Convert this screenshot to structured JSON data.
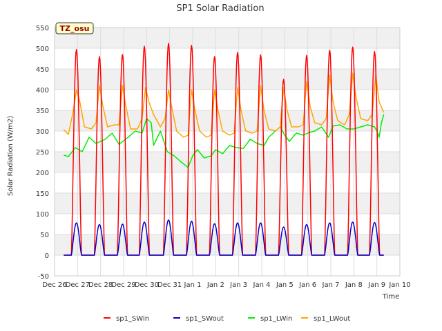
{
  "chart_data": {
    "type": "line",
    "title": "SP1 Solar Radiation",
    "xlabel": "Time",
    "ylabel": "Solar Radiation (W/m2)",
    "site_label": "TZ_osu",
    "ylim": [
      -50,
      550
    ],
    "yticks": [
      -50,
      0,
      50,
      100,
      150,
      200,
      250,
      300,
      350,
      400,
      450,
      500,
      550
    ],
    "xlim": [
      0,
      15
    ],
    "xticks": [
      {
        "x": 0,
        "label": "Dec 26"
      },
      {
        "x": 1,
        "label": "Dec 27"
      },
      {
        "x": 2,
        "label": "Dec 28"
      },
      {
        "x": 3,
        "label": "Dec 29"
      },
      {
        "x": 4,
        "label": "Dec 30"
      },
      {
        "x": 5,
        "label": "Dec 31"
      },
      {
        "x": 6,
        "label": "Jan 1"
      },
      {
        "x": 7,
        "label": "Jan 2"
      },
      {
        "x": 8,
        "label": "Jan 3"
      },
      {
        "x": 9,
        "label": "Jan 4"
      },
      {
        "x": 10,
        "label": "Jan 5"
      },
      {
        "x": 11,
        "label": "Jan 6"
      },
      {
        "x": 12,
        "label": "Jan 7"
      },
      {
        "x": 13,
        "label": "Jan 8"
      },
      {
        "x": 14,
        "label": "Jan 9"
      },
      {
        "x": 15,
        "label": "Jan 10"
      }
    ],
    "grid": true,
    "legend_position": "bottom",
    "series": [
      {
        "name": "sp1_SWin",
        "color": "#ff0000",
        "peaks": [
          [
            0.95,
            497
          ],
          [
            1.95,
            480
          ],
          [
            2.95,
            485
          ],
          [
            3.9,
            505
          ],
          [
            4.95,
            512
          ],
          [
            5.95,
            507
          ],
          [
            6.95,
            480
          ],
          [
            7.95,
            490
          ],
          [
            8.95,
            484
          ],
          [
            9.95,
            425
          ],
          [
            10.95,
            483
          ],
          [
            11.95,
            495
          ],
          [
            12.95,
            503
          ],
          [
            13.9,
            492
          ]
        ]
      },
      {
        "name": "sp1_SWout",
        "color": "#0000cc",
        "peaks": [
          [
            0.95,
            78
          ],
          [
            1.95,
            74
          ],
          [
            2.95,
            75
          ],
          [
            3.9,
            80
          ],
          [
            4.95,
            85
          ],
          [
            5.95,
            82
          ],
          [
            6.95,
            76
          ],
          [
            7.95,
            78
          ],
          [
            8.95,
            78
          ],
          [
            9.95,
            68
          ],
          [
            10.95,
            74
          ],
          [
            11.95,
            78
          ],
          [
            12.95,
            80
          ],
          [
            13.9,
            79
          ]
        ]
      },
      {
        "name": "sp1_LWin",
        "color": "#00ee00",
        "points": [
          [
            0.4,
            242
          ],
          [
            0.6,
            238
          ],
          [
            0.9,
            260
          ],
          [
            1.2,
            250
          ],
          [
            1.5,
            285
          ],
          [
            1.8,
            270
          ],
          [
            2.2,
            280
          ],
          [
            2.5,
            295
          ],
          [
            2.8,
            268
          ],
          [
            3.2,
            285
          ],
          [
            3.5,
            300
          ],
          [
            3.8,
            295
          ],
          [
            4.0,
            330
          ],
          [
            4.2,
            320
          ],
          [
            4.3,
            265
          ],
          [
            4.6,
            300
          ],
          [
            4.9,
            250
          ],
          [
            5.2,
            240
          ],
          [
            5.5,
            225
          ],
          [
            5.8,
            212
          ],
          [
            6.0,
            240
          ],
          [
            6.2,
            255
          ],
          [
            6.5,
            235
          ],
          [
            6.8,
            240
          ],
          [
            7.0,
            255
          ],
          [
            7.3,
            245
          ],
          [
            7.6,
            265
          ],
          [
            7.9,
            260
          ],
          [
            8.2,
            258
          ],
          [
            8.5,
            280
          ],
          [
            8.8,
            270
          ],
          [
            9.1,
            265
          ],
          [
            9.3,
            285
          ],
          [
            9.6,
            300
          ],
          [
            9.8,
            310
          ],
          [
            10.0,
            290
          ],
          [
            10.2,
            275
          ],
          [
            10.5,
            295
          ],
          [
            10.8,
            290
          ],
          [
            11.0,
            295
          ],
          [
            11.3,
            300
          ],
          [
            11.6,
            310
          ],
          [
            11.9,
            285
          ],
          [
            12.1,
            312
          ],
          [
            12.4,
            315
          ],
          [
            12.7,
            305
          ],
          [
            13.0,
            305
          ],
          [
            13.3,
            310
          ],
          [
            13.6,
            315
          ],
          [
            13.9,
            310
          ],
          [
            14.0,
            300
          ],
          [
            14.1,
            285
          ],
          [
            14.2,
            320
          ],
          [
            14.3,
            340
          ]
        ]
      },
      {
        "name": "sp1_LWout",
        "color": "#ffa500",
        "points": [
          [
            0.4,
            303
          ],
          [
            0.6,
            292
          ],
          [
            0.8,
            345
          ],
          [
            0.95,
            400
          ],
          [
            1.1,
            370
          ],
          [
            1.3,
            310
          ],
          [
            1.6,
            305
          ],
          [
            1.8,
            320
          ],
          [
            1.95,
            410
          ],
          [
            2.1,
            360
          ],
          [
            2.3,
            310
          ],
          [
            2.6,
            315
          ],
          [
            2.8,
            315
          ],
          [
            2.95,
            410
          ],
          [
            3.1,
            360
          ],
          [
            3.3,
            305
          ],
          [
            3.6,
            305
          ],
          [
            3.8,
            330
          ],
          [
            3.95,
            405
          ],
          [
            4.1,
            370
          ],
          [
            4.3,
            340
          ],
          [
            4.6,
            310
          ],
          [
            4.8,
            330
          ],
          [
            4.95,
            400
          ],
          [
            5.1,
            355
          ],
          [
            5.3,
            300
          ],
          [
            5.6,
            285
          ],
          [
            5.8,
            290
          ],
          [
            5.95,
            400
          ],
          [
            6.1,
            350
          ],
          [
            6.3,
            300
          ],
          [
            6.6,
            285
          ],
          [
            6.8,
            290
          ],
          [
            6.95,
            400
          ],
          [
            7.1,
            350
          ],
          [
            7.3,
            300
          ],
          [
            7.6,
            290
          ],
          [
            7.8,
            295
          ],
          [
            7.95,
            405
          ],
          [
            8.1,
            350
          ],
          [
            8.3,
            300
          ],
          [
            8.6,
            295
          ],
          [
            8.8,
            300
          ],
          [
            8.95,
            410
          ],
          [
            9.1,
            350
          ],
          [
            9.3,
            305
          ],
          [
            9.6,
            300
          ],
          [
            9.8,
            310
          ],
          [
            9.95,
            405
          ],
          [
            10.1,
            350
          ],
          [
            10.3,
            310
          ],
          [
            10.6,
            310
          ],
          [
            10.8,
            315
          ],
          [
            10.95,
            420
          ],
          [
            11.1,
            360
          ],
          [
            11.3,
            320
          ],
          [
            11.6,
            315
          ],
          [
            11.8,
            330
          ],
          [
            11.95,
            435
          ],
          [
            12.1,
            370
          ],
          [
            12.3,
            325
          ],
          [
            12.6,
            315
          ],
          [
            12.8,
            340
          ],
          [
            12.95,
            440
          ],
          [
            13.1,
            380
          ],
          [
            13.3,
            330
          ],
          [
            13.6,
            325
          ],
          [
            13.8,
            340
          ],
          [
            13.95,
            435
          ],
          [
            14.1,
            370
          ],
          [
            14.3,
            345
          ]
        ]
      }
    ]
  }
}
